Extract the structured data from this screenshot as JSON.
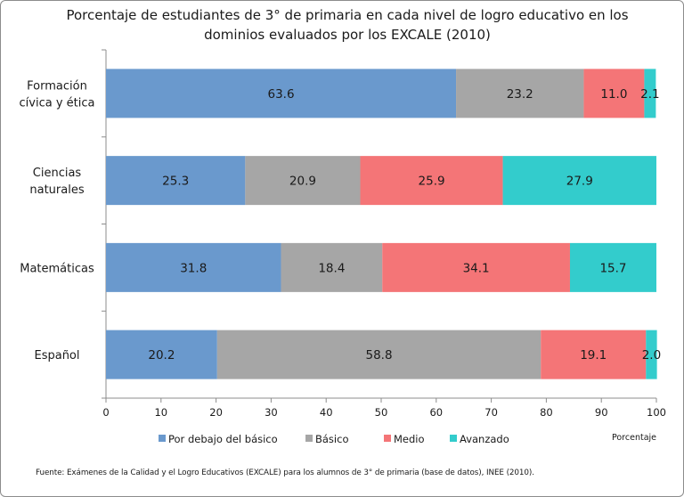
{
  "chart_data": {
    "type": "bar",
    "orientation": "horizontal",
    "stacked": true,
    "title": "Porcentaje de estudiantes de 3° de primaria en cada nivel de logro educativo en los dominios evaluados por los EXCALE (2010)",
    "title_lines": [
      "Porcentaje de estudiantes de 3° de primaria en cada nivel de logro educativo en los",
      "dominios evaluados por los EXCALE (2010)"
    ],
    "categories": [
      {
        "lines": [
          "Formación",
          "cívica y ética"
        ]
      },
      {
        "lines": [
          "Ciencias",
          "naturales"
        ]
      },
      {
        "lines": [
          "Matemáticas"
        ]
      },
      {
        "lines": [
          "Español"
        ]
      }
    ],
    "series": [
      {
        "name": "Por debajo del básico",
        "color": "#6a99cd",
        "values": [
          63.6,
          25.3,
          31.8,
          20.2
        ],
        "labels": [
          "63.6",
          "25.3",
          "31.8",
          "20.2"
        ]
      },
      {
        "name": "Básico",
        "color": "#a6a6a6",
        "values": [
          23.2,
          20.9,
          18.4,
          58.8
        ],
        "labels": [
          "23.2",
          "20.9",
          "18.4",
          "58.8"
        ]
      },
      {
        "name": "Medio",
        "color": "#f47577",
        "values": [
          11.0,
          25.9,
          34.1,
          19.1
        ],
        "labels": [
          "11.0",
          "25.9",
          "34.1",
          "19.1"
        ]
      },
      {
        "name": "Avanzado",
        "color": "#33cccc",
        "values": [
          2.1,
          27.9,
          15.7,
          2.0
        ],
        "labels": [
          "2.1",
          "27.9",
          "15.7",
          "2.0"
        ]
      }
    ],
    "xlim": [
      0,
      100
    ],
    "xticks": [
      "0",
      "10",
      "20",
      "30",
      "40",
      "50",
      "60",
      "70",
      "80",
      "90",
      "100"
    ],
    "xlabel": "Porcentaje",
    "ylabel": "",
    "legend_position": "bottom",
    "grid": false
  },
  "source_note": "Fuente: Exámenes de la Calidad y el Logro Educativos (EXCALE) para los alumnos de 3° de primaria (base de datos), INEE (2010)."
}
